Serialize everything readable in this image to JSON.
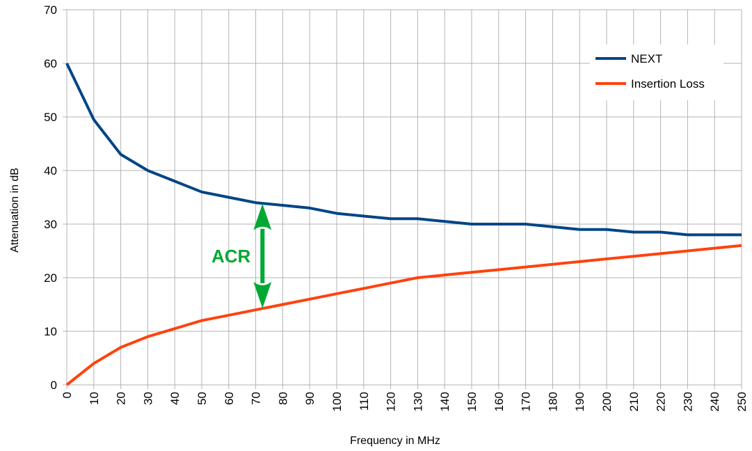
{
  "chart_data": {
    "type": "line",
    "title": "",
    "xlabel": "Frequency in MHz",
    "ylabel": "Attenuation in dB",
    "x": [
      0,
      10,
      20,
      30,
      40,
      50,
      60,
      70,
      80,
      90,
      100,
      110,
      120,
      130,
      140,
      150,
      160,
      170,
      180,
      190,
      200,
      210,
      220,
      230,
      240,
      250
    ],
    "x_tick_labels": [
      "0",
      "10",
      "20",
      "30",
      "40",
      "50",
      "60",
      "70",
      "80",
      "90",
      "100",
      "110",
      "120",
      "130",
      "140",
      "150",
      "160",
      "170",
      "180",
      "190",
      "200",
      "210",
      "220",
      "230",
      "240",
      "250"
    ],
    "y_tick_labels": [
      "0",
      "10",
      "20",
      "30",
      "40",
      "50",
      "60",
      "70"
    ],
    "xlim": [
      0,
      250
    ],
    "ylim": [
      0,
      70
    ],
    "grid": true,
    "legend_position": "top-right",
    "series": [
      {
        "name": "NEXT",
        "color": "#004586",
        "values": [
          60,
          49.5,
          43,
          40,
          38,
          36,
          35,
          34,
          33.5,
          33,
          32,
          31.5,
          31,
          31,
          30.5,
          30,
          30,
          30,
          29.5,
          29,
          29,
          28.5,
          28.5,
          28,
          28,
          28
        ]
      },
      {
        "name": "Insertion Loss",
        "color": "#ff420e",
        "values": [
          0,
          4,
          7,
          9,
          10.5,
          12,
          13,
          14,
          15,
          16,
          17,
          18,
          19,
          20,
          20.5,
          21,
          21.5,
          22,
          22.5,
          23,
          23.5,
          24,
          24.5,
          25,
          25.5,
          26
        ]
      }
    ],
    "annotations": [
      {
        "text": "ACR",
        "color": "#00a933",
        "x": 72.5,
        "y_from": 14.3,
        "y_to": 33.8
      }
    ]
  }
}
